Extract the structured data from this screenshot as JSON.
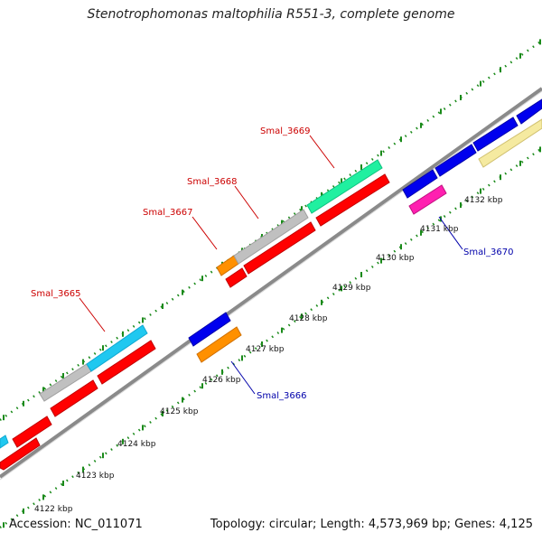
{
  "title": "Stenotrophomonas maltophilia R551-3, complete genome",
  "footer": {
    "accession": "Accession: NC_011071",
    "info": "Topology: circular; Length: 4,573,969 bp; Genes: 4,125"
  },
  "colors": {
    "red": "#ff0000",
    "gray": "#c0c0c0",
    "cyan": "#20c8f0",
    "orange": "#ff9000",
    "blue": "#0000ee",
    "magenta": "#ff20b0",
    "mint": "#20f0a0",
    "khaki": "#f5eaa0",
    "backbone": "#808080",
    "tick": "#1a8a1a",
    "label_red": "#cc0000",
    "label_blue": "#0000aa"
  },
  "kbp_labels": [
    "4122 kbp",
    "4123 kbp",
    "4124 kbp",
    "4125 kbp",
    "4126 kbp",
    "4127 kbp",
    "4128 kbp",
    "4129 kbp",
    "4130 kbp",
    "4131 kbp",
    "4132 kbp"
  ],
  "gene_labels": [
    "Smal_3665",
    "Smal_3666",
    "Smal_3667",
    "Smal_3668",
    "Smal_3669",
    "Smal_3670"
  ]
}
